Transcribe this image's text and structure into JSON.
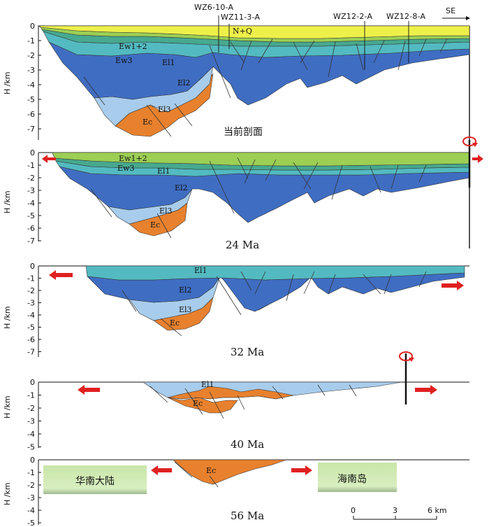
{
  "panels": [
    {
      "id": "present",
      "caption": "当前剖面",
      "ticks": [
        "0",
        "-1",
        "-2",
        "-3",
        "-4",
        "-5",
        "-6",
        "-7"
      ]
    },
    {
      "id": "24ma",
      "caption": "24 Ma",
      "ticks": [
        "0",
        "-1",
        "-2",
        "-3",
        "-4",
        "-5",
        "-6",
        "-7"
      ]
    },
    {
      "id": "32ma",
      "caption": "32 Ma",
      "ticks": [
        "0",
        "-1",
        "-2",
        "-3",
        "-4",
        "-5",
        "-6",
        "-7"
      ]
    },
    {
      "id": "40ma",
      "caption": "40 Ma",
      "ticks": [
        "0",
        "-1",
        "-2",
        "-3",
        "-4",
        "-5"
      ]
    },
    {
      "id": "56ma",
      "caption": "56 Ma",
      "ticks": [
        "0",
        "-1",
        "-2",
        "-3",
        "-4",
        "-5"
      ]
    }
  ],
  "axis_label": "H /km",
  "wells": [
    "WZ6-10-A",
    "WZ11-3-A",
    "WZ12-2-A",
    "WZ12-8-A"
  ],
  "direction": "SE",
  "layers": {
    "nq": "N+Q",
    "ew12": "Ew1+2",
    "ew3": "Ew3",
    "el1": "El1",
    "el2": "El2",
    "el3": "El3",
    "ec": "Ec"
  },
  "regions": {
    "left": "华南大陆",
    "right": "海南岛"
  },
  "scale": {
    "labels": [
      "0",
      "3",
      "6 km"
    ]
  },
  "colors": {
    "nq": "#eef04a",
    "ew12": "#9ccf54",
    "ew3": "#47a98f",
    "el1": "#53bac1",
    "el2": "#3f6dc2",
    "el3": "#a8ccec",
    "ec": "#e8812e",
    "arrow": "#e02020",
    "box": "#c8e6a4"
  }
}
